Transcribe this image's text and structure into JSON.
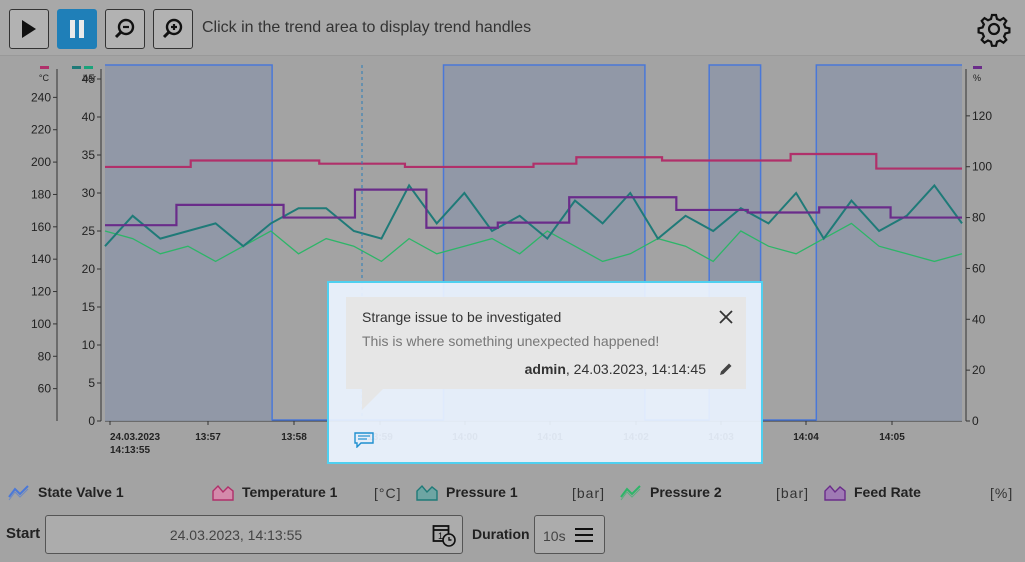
{
  "toolbar": {
    "message": "Click in the trend area to display trend handles",
    "buttons": [
      {
        "name": "play-button",
        "icon": "play-icon"
      },
      {
        "name": "pause-button",
        "icon": "pause-icon",
        "active": true
      },
      {
        "name": "zoom-out-button",
        "icon": "zoom-out-icon"
      },
      {
        "name": "zoom-in-button",
        "icon": "zoom-in-icon"
      }
    ],
    "settings_icon": "gear-icon"
  },
  "axes": {
    "temperature": {
      "unit": "°C",
      "ticks": [
        "240",
        "220",
        "200",
        "180",
        "160",
        "140",
        "120",
        "100",
        "80",
        "60"
      ],
      "color": "#b0306a"
    },
    "pressure": {
      "unit": "bar",
      "ticks": [
        "45",
        "40",
        "35",
        "30",
        "25",
        "20",
        "15",
        "10",
        "5",
        "0"
      ],
      "color": "#1aa37a"
    },
    "percent": {
      "unit": "%",
      "ticks": [
        "120",
        "100",
        "80",
        "60",
        "40",
        "20",
        "0"
      ],
      "color": "#6a2c8a"
    },
    "time_ticks": [
      "24.03.2023",
      "13:57",
      "13:58",
      "13:59",
      "14:00",
      "14:01",
      "14:02",
      "14:03",
      "14:04",
      "14:05"
    ],
    "time_start_second_line": "14:13:55"
  },
  "chart_data": {
    "type": "line",
    "x_label_ticks": [
      "24.03.2023 14:13:55",
      "13:57",
      "13:58",
      "13:59",
      "14:00",
      "14:01",
      "14:02",
      "14:03",
      "14:04",
      "14:05"
    ],
    "series": [
      {
        "name": "State Valve 1",
        "color": "#4a78d8",
        "kind": "state",
        "segments": [
          [
            0,
            1
          ],
          [
            0.195,
            0
          ],
          [
            0.395,
            1
          ],
          [
            0.63,
            0
          ],
          [
            0.705,
            1
          ],
          [
            0.765,
            0
          ],
          [
            0.83,
            1
          ]
        ]
      },
      {
        "name": "Temperature 1",
        "unit": "°C",
        "color": "#b0306a",
        "values": [
          197,
          197,
          201,
          201,
          201,
          199,
          199,
          197,
          197,
          197,
          199,
          203,
          203,
          201,
          201,
          201,
          205,
          205,
          196,
          196
        ]
      },
      {
        "name": "Pressure 1",
        "unit": "bar",
        "color": "#1f7a78",
        "values": [
          23,
          27,
          24,
          25,
          26,
          23,
          26,
          28,
          28,
          25,
          24,
          31,
          26,
          30,
          25,
          27,
          24,
          29,
          26,
          30,
          24,
          27,
          25,
          28,
          26,
          30,
          24,
          29,
          25,
          27,
          31,
          26
        ]
      },
      {
        "name": "Pressure 2",
        "unit": "bar",
        "color": "#2db568",
        "values": [
          25,
          24,
          22,
          23,
          21,
          23,
          25,
          22,
          24,
          23,
          21,
          24,
          22,
          23,
          24,
          22,
          25,
          23,
          21,
          22,
          24,
          23,
          21,
          25,
          23,
          22,
          24,
          26,
          23,
          22,
          21,
          22
        ]
      },
      {
        "name": "Feed Rate",
        "unit": "%",
        "color": "#6a2c8a",
        "values": [
          77,
          77,
          85,
          85,
          85,
          80,
          80,
          91,
          91,
          76,
          76,
          78,
          78,
          88,
          88,
          88,
          83,
          83,
          82,
          82,
          84,
          84,
          80,
          80
        ]
      }
    ],
    "ylim_temperature": [
      40,
      260
    ],
    "ylim_pressure": [
      0,
      45
    ],
    "ylim_percent": [
      0,
      140
    ],
    "grid": false,
    "legend_position": "bottom"
  },
  "annotation": {
    "title": "Strange issue to be investigated",
    "description": "This is where something unexpected happened!",
    "author": "admin",
    "timestamp": ", 24.03.2023, 14:14:45",
    "icon": "comment-icon"
  },
  "legend": [
    {
      "label": "State Valve 1",
      "unit": "",
      "color": "#4a78d8"
    },
    {
      "label": "Temperature 1",
      "unit": "[°C]",
      "color": "#b0306a"
    },
    {
      "label": "Pressure 1",
      "unit": "[bar]",
      "color": "#1f7a78"
    },
    {
      "label": "Pressure 2",
      "unit": "[bar]",
      "color": "#2db568"
    },
    {
      "label": "Feed Rate",
      "unit": "[%]",
      "color": "#6a2c8a"
    }
  ],
  "footer": {
    "start_label": "Start",
    "start_value": "24.03.2023, 14:13:55",
    "duration_label": "Duration",
    "duration_value": "10s"
  }
}
